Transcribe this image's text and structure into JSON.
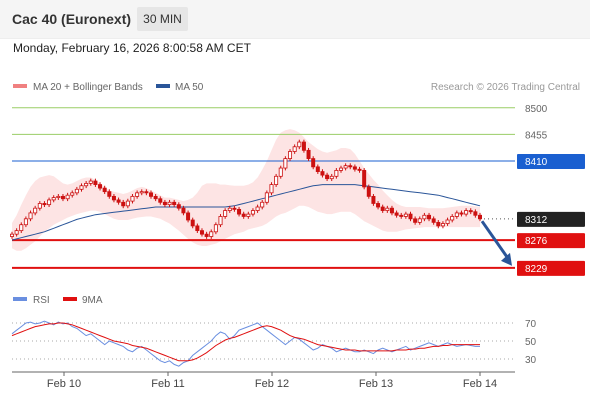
{
  "header": {
    "instrument": "Cac 40 (Euronext)",
    "timeframe": "30 MIN",
    "datetime": "Monday, February 16, 2026 8:00:58 AM CET"
  },
  "legend": {
    "ma20": "MA 20 + Bollinger Bands",
    "ma50": "MA 50",
    "credit": "Research © 2026 Trading Central",
    "rsi": "RSI",
    "rsi_ma": "9MA"
  },
  "colors": {
    "ma20": "#f08080",
    "ma50": "#2a5599",
    "bollinger_fill": "#fde4e4",
    "candle_up": "#cc1111",
    "candle_down": "#cc1111",
    "resistance_green": "#9acd66",
    "pivot_blue": "#1a5fd0",
    "support_red": "#e01010",
    "last_price": "#222222",
    "arrow": "#2a5599",
    "rsi_line": "#6a8fe0",
    "rsi_ma_line": "#e01010"
  },
  "chart_data": [
    {
      "type": "candlestick",
      "x_ticks": [
        "Feb 10",
        "Feb 11",
        "Feb 12",
        "Feb 13",
        "Feb 14"
      ],
      "ylim": [
        8205,
        8520
      ],
      "y_ticks": [
        8500,
        8455,
        8410,
        8312,
        8276,
        8229
      ],
      "levels": [
        {
          "label": "8500",
          "value": 8500,
          "kind": "resistance"
        },
        {
          "label": "8455",
          "value": 8455,
          "kind": "resistance"
        },
        {
          "label": "8410",
          "value": 8410,
          "kind": "pivot"
        },
        {
          "label": "8312",
          "value": 8312,
          "kind": "last"
        },
        {
          "label": "8276",
          "value": 8276,
          "kind": "support"
        },
        {
          "label": "8229",
          "value": 8229,
          "kind": "support"
        }
      ],
      "close": [
        8286,
        8292,
        8302,
        8312,
        8322,
        8330,
        8338,
        8336,
        8344,
        8348,
        8350,
        8346,
        8352,
        8356,
        8362,
        8368,
        8372,
        8376,
        8370,
        8364,
        8358,
        8350,
        8344,
        8340,
        8334,
        8342,
        8350,
        8356,
        8358,
        8356,
        8350,
        8346,
        8340,
        8336,
        8340,
        8336,
        8330,
        8322,
        8310,
        8300,
        8292,
        8286,
        8282,
        8290,
        8302,
        8316,
        8326,
        8330,
        8328,
        8320,
        8316,
        8320,
        8326,
        8332,
        8340,
        8356,
        8370,
        8384,
        8398,
        8414,
        8426,
        8434,
        8442,
        8428,
        8414,
        8400,
        8392,
        8386,
        8380,
        8384,
        8394,
        8398,
        8402,
        8400,
        8396,
        8394,
        8366,
        8350,
        8338,
        8332,
        8326,
        8330,
        8322,
        8318,
        8316,
        8320,
        8312,
        8306,
        8312,
        8318,
        8312,
        8306,
        8300,
        8304,
        8310,
        8316,
        8322,
        8320,
        8326,
        8324,
        8318,
        8312
      ],
      "bollinger_upper": [
        8305,
        8318,
        8336,
        8352,
        8366,
        8376,
        8382,
        8384,
        8386,
        8384,
        8378,
        8372,
        8370,
        8372,
        8376,
        8380,
        8382,
        8382,
        8378,
        8372,
        8366,
        8360,
        8358,
        8356,
        8354,
        8356,
        8360,
        8364,
        8366,
        8364,
        8360,
        8356,
        8352,
        8348,
        8348,
        8346,
        8344,
        8342,
        8344,
        8348,
        8356,
        8368,
        8372,
        8372,
        8372,
        8370,
        8370,
        8369,
        8368,
        8368,
        8368,
        8370,
        8374,
        8382,
        8395,
        8410,
        8428,
        8446,
        8458,
        8462,
        8464,
        8462,
        8458,
        8450,
        8442,
        8436,
        8430,
        8426,
        8424,
        8426,
        8428,
        8432,
        8432,
        8430,
        8422,
        8410,
        8398,
        8388,
        8378,
        8370,
        8360,
        8352,
        8344,
        8338,
        8334,
        8332,
        8332,
        8332,
        8332,
        8331,
        8330,
        8330,
        8330,
        8330,
        8331,
        8332,
        8333,
        8334,
        8334,
        8334,
        8333,
        8332
      ],
      "bollinger_lower": [
        8262,
        8258,
        8258,
        8262,
        8268,
        8274,
        8282,
        8290,
        8296,
        8302,
        8306,
        8310,
        8314,
        8317,
        8320,
        8322,
        8324,
        8326,
        8326,
        8324,
        8320,
        8316,
        8312,
        8310,
        8310,
        8310,
        8312,
        8314,
        8315,
        8316,
        8316,
        8314,
        8312,
        8308,
        8304,
        8298,
        8292,
        8285,
        8278,
        8272,
        8268,
        8266,
        8266,
        8268,
        8270,
        8274,
        8278,
        8282,
        8286,
        8288,
        8290,
        8294,
        8296,
        8298,
        8300,
        8304,
        8310,
        8316,
        8320,
        8322,
        8326,
        8330,
        8334,
        8334,
        8332,
        8328,
        8324,
        8322,
        8320,
        8320,
        8322,
        8324,
        8324,
        8324,
        8320,
        8314,
        8308,
        8304,
        8300,
        8296,
        8292,
        8290,
        8290,
        8290,
        8292,
        8294,
        8295,
        8296,
        8297,
        8298,
        8298,
        8298,
        8298,
        8298,
        8298,
        8298,
        8298,
        8298,
        8298,
        8298,
        8298,
        8298
      ],
      "ma50": [
        8276,
        8278,
        8280,
        8282,
        8284,
        8286,
        8288,
        8290,
        8293,
        8296,
        8299,
        8302,
        8305,
        8308,
        8311,
        8313,
        8315,
        8317,
        8319,
        8320,
        8321,
        8322,
        8323,
        8324,
        8325,
        8326,
        8327,
        8328,
        8329,
        8330,
        8331,
        8332,
        8332,
        8332,
        8332,
        8332,
        8332,
        8332,
        8332,
        8332,
        8332,
        8332,
        8332,
        8332,
        8332,
        8332,
        8332,
        8333,
        8334,
        8336,
        8338,
        8340,
        8342,
        8344,
        8346,
        8348,
        8350,
        8352,
        8354,
        8356,
        8358,
        8360,
        8362,
        8364,
        8366,
        8368,
        8369,
        8370,
        8370,
        8370,
        8370,
        8370,
        8370,
        8370,
        8370,
        8369,
        8368,
        8367,
        8366,
        8365,
        8364,
        8363,
        8362,
        8361,
        8360,
        8359,
        8358,
        8357,
        8356,
        8355,
        8354,
        8353,
        8352,
        8350,
        8348,
        8346,
        8344,
        8342,
        8340,
        8338,
        8336,
        8334
      ],
      "series": [
        {
          "name": "MA 20 + Bollinger Bands",
          "kind": "ma20"
        },
        {
          "name": "MA 50",
          "kind": "ma50"
        }
      ],
      "forecast_arrow": {
        "from": 8308,
        "to": 8229
      }
    },
    {
      "type": "line",
      "ylim": [
        20,
        80
      ],
      "y_ticks": [
        70,
        50,
        30
      ],
      "series": [
        {
          "name": "RSI",
          "values": [
            58,
            62,
            66,
            70,
            71,
            69,
            70,
            72,
            70,
            68,
            71,
            69,
            70,
            66,
            64,
            60,
            56,
            58,
            54,
            50,
            46,
            50,
            48,
            46,
            44,
            40,
            38,
            42,
            44,
            40,
            36,
            32,
            28,
            26,
            28,
            24,
            22,
            26,
            28,
            34,
            38,
            42,
            46,
            50,
            56,
            60,
            58,
            52,
            56,
            62,
            64,
            66,
            68,
            70,
            66,
            62,
            58,
            54,
            50,
            46,
            50,
            54,
            52,
            48,
            44,
            40,
            42,
            46,
            44,
            42,
            38,
            40,
            42,
            40,
            38,
            38,
            40,
            38,
            36,
            40,
            42,
            40,
            38,
            40,
            42,
            44,
            40,
            42,
            44,
            46,
            48,
            46,
            44,
            46,
            48,
            46,
            44,
            45,
            46,
            45,
            44,
            44
          ]
        },
        {
          "name": "9MA",
          "values": [
            56,
            58,
            60,
            62,
            64,
            66,
            67,
            68,
            69,
            69,
            70,
            70,
            69,
            68,
            66,
            64,
            62,
            60,
            58,
            56,
            54,
            52,
            50,
            49,
            48,
            47,
            45,
            44,
            43,
            42,
            40,
            38,
            36,
            34,
            32,
            30,
            28,
            28,
            28,
            29,
            31,
            34,
            37,
            41,
            45,
            48,
            51,
            53,
            54,
            56,
            58,
            60,
            62,
            64,
            66,
            67,
            66,
            64,
            62,
            59,
            56,
            54,
            53,
            52,
            50,
            48,
            46,
            45,
            44,
            43,
            42,
            41,
            40,
            40,
            40,
            39,
            39,
            39,
            39,
            39,
            39,
            39,
            39,
            40,
            40,
            40,
            41,
            41,
            42,
            42,
            43,
            44,
            44,
            45,
            45,
            46,
            46,
            46,
            46,
            46,
            46,
            46
          ]
        }
      ]
    }
  ]
}
